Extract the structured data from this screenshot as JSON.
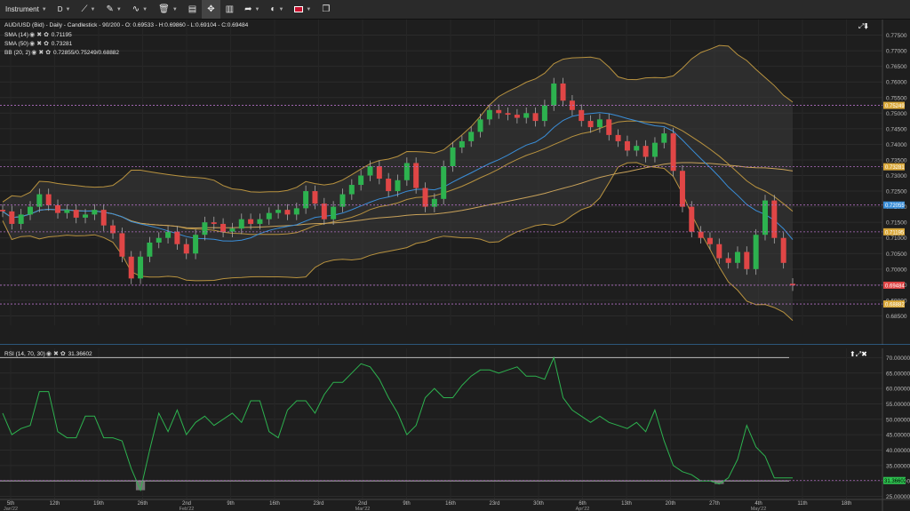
{
  "toolbar": {
    "instrument_label": "Instrument",
    "period_label": "D"
  },
  "legend": {
    "title": "AUD/USD (Bid) - Daily - Candlestick",
    "ohlc": "90/200 - O: 0.69533 - H:0.69860 - L:0.69104 - C:0.69484",
    "sma14_label": "SMA (14)",
    "sma14_value": "0.71195",
    "sma50_label": "SMA (50)",
    "sma50_value": "0.73281",
    "bb_label": "BB (20, 2)",
    "bb_value": "0.72855/0.75249/0.68882",
    "rsi_label": "RSI (14, 70, 30)",
    "rsi_value": "31.36602"
  },
  "colors": {
    "up": "#2db24f",
    "down": "#e04646",
    "sma14": "#3a8ed8",
    "sma50": "#c9a25a",
    "bb": "#b8923f",
    "rsi": "#2db24f",
    "hline": "#b06fc2"
  },
  "chart_data": [
    {
      "type": "candlestick",
      "ylim": [
        0.682,
        0.78
      ],
      "y_ticks": [
        "0.77500",
        "0.77000",
        "0.76500",
        "0.76000",
        "0.75500",
        "0.75000",
        "0.74500",
        "0.74000",
        "0.73500",
        "0.73000",
        "0.72500",
        "0.72000",
        "0.71500",
        "0.71000",
        "0.70500",
        "0.70000",
        "0.69500",
        "0.69000",
        "0.68500"
      ],
      "x_labels": [
        "5th",
        "12th",
        "19th",
        "26th",
        "2nd",
        "9th",
        "16th",
        "23rd",
        "2nd",
        "9th",
        "16th",
        "23rd",
        "30th",
        "6th",
        "13th",
        "20th",
        "27th",
        "4th",
        "11th",
        "18th"
      ],
      "x_sub_labels": [
        "Jan'22",
        "",
        "",
        "",
        "Feb'22",
        "",
        "",
        "",
        "Mar'22",
        "",
        "",
        "",
        "",
        "Apr'22",
        "",
        "",
        "",
        "May'22",
        "",
        ""
      ],
      "price_tags": [
        {
          "value": 0.75249,
          "label": "0.75249",
          "color": "#d9a83a"
        },
        {
          "value": 0.73281,
          "label": "0.73281",
          "color": "#d9a83a"
        },
        {
          "value": 0.72055,
          "label": "0.72055",
          "color": "#3a8ed8"
        },
        {
          "value": 0.71195,
          "label": "0.71195",
          "color": "#d9a83a"
        },
        {
          "value": 0.69484,
          "label": "0.69484",
          "color": "#e04646"
        },
        {
          "value": 0.68882,
          "label": "0.68882",
          "color": "#d9a83a"
        }
      ],
      "close": [
        0.7185,
        0.7145,
        0.7175,
        0.72,
        0.724,
        0.7205,
        0.718,
        0.719,
        0.7165,
        0.7175,
        0.719,
        0.714,
        0.7115,
        0.704,
        0.697,
        0.704,
        0.7085,
        0.71,
        0.712,
        0.708,
        0.705,
        0.711,
        0.715,
        0.7145,
        0.712,
        0.713,
        0.716,
        0.7145,
        0.716,
        0.718,
        0.719,
        0.7175,
        0.7195,
        0.725,
        0.721,
        0.716,
        0.72,
        0.724,
        0.727,
        0.73,
        0.733,
        0.729,
        0.725,
        0.7285,
        0.734,
        0.726,
        0.72,
        0.7225,
        0.733,
        0.739,
        0.741,
        0.744,
        0.748,
        0.751,
        0.75,
        0.7495,
        0.7485,
        0.75,
        0.7475,
        0.7525,
        0.7595,
        0.754,
        0.751,
        0.7475,
        0.7455,
        0.748,
        0.743,
        0.741,
        0.738,
        0.7395,
        0.736,
        0.7405,
        0.7435,
        0.7315,
        0.72,
        0.712,
        0.71,
        0.708,
        0.7035,
        0.702,
        0.7055,
        0.7,
        0.711,
        0.722,
        0.71,
        0.702,
        0.6948
      ],
      "open": [
        0.719,
        0.7185,
        0.7145,
        0.7175,
        0.72,
        0.724,
        0.7205,
        0.718,
        0.719,
        0.7165,
        0.7175,
        0.719,
        0.714,
        0.7115,
        0.704,
        0.697,
        0.704,
        0.7085,
        0.71,
        0.712,
        0.708,
        0.705,
        0.711,
        0.715,
        0.7145,
        0.712,
        0.713,
        0.716,
        0.7145,
        0.716,
        0.718,
        0.719,
        0.7175,
        0.7195,
        0.725,
        0.721,
        0.716,
        0.72,
        0.724,
        0.727,
        0.73,
        0.733,
        0.729,
        0.725,
        0.7285,
        0.734,
        0.726,
        0.72,
        0.7225,
        0.733,
        0.739,
        0.741,
        0.744,
        0.748,
        0.751,
        0.75,
        0.7495,
        0.7485,
        0.75,
        0.7475,
        0.7525,
        0.7595,
        0.754,
        0.751,
        0.7475,
        0.7455,
        0.748,
        0.743,
        0.741,
        0.738,
        0.7395,
        0.736,
        0.7405,
        0.7435,
        0.7315,
        0.72,
        0.712,
        0.71,
        0.708,
        0.7035,
        0.702,
        0.7055,
        0.7,
        0.711,
        0.722,
        0.71,
        0.6953
      ]
    },
    {
      "type": "line",
      "name": "RSI (14, 70, 30)",
      "ylim": [
        24,
        73
      ],
      "y_ticks": [
        "70.00000",
        "65.00000",
        "60.00000",
        "55.00000",
        "50.00000",
        "45.00000",
        "40.00000",
        "35.00000",
        "30.00000",
        "25.00000"
      ],
      "levels": [
        70,
        30
      ],
      "value_tag": "31.36602",
      "values": [
        52,
        45,
        47,
        48,
        59,
        59,
        46,
        44,
        44,
        51,
        51,
        44,
        44,
        43,
        34,
        27,
        40,
        52,
        46,
        53,
        45,
        49,
        51,
        48,
        50,
        52,
        49,
        56,
        56,
        46,
        44,
        53,
        56,
        56,
        52,
        58,
        62,
        62,
        65,
        68,
        67,
        63,
        57,
        52,
        45,
        48,
        57,
        60,
        57,
        57,
        61,
        64,
        66,
        66,
        65,
        66,
        67,
        64,
        64,
        63,
        70,
        57,
        53,
        51,
        49,
        51,
        49,
        48,
        47,
        49,
        46,
        53,
        43,
        35,
        33,
        32,
        30,
        30,
        29,
        31,
        37,
        48,
        41,
        38,
        31,
        31,
        31
      ]
    }
  ]
}
